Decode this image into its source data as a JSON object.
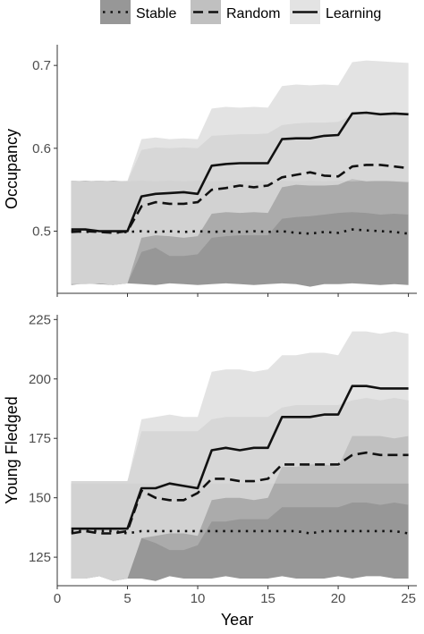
{
  "legend": {
    "items": [
      {
        "label": "Stable",
        "dash": "dotted",
        "fill": "#7d7d7d"
      },
      {
        "label": "Random",
        "dash": "dashed",
        "fill": "#b0b0b0"
      },
      {
        "label": "Learning",
        "dash": "solid",
        "fill": "#dcdcdc"
      }
    ]
  },
  "colors": {
    "line": "#111111",
    "axis": "#333333",
    "tick_text": "#4d4d4d",
    "stable_band": "#7d7d7d",
    "random_band": "#b0b0b0",
    "learning_band": "#dcdcdc",
    "band_opacity": "0.8"
  },
  "chart_data": [
    {
      "type": "line",
      "ylabel": "Occupancy",
      "xlabel": "",
      "xlim": [
        0,
        25.6
      ],
      "ylim": [
        0.425,
        0.725
      ],
      "yticks": [
        0.5,
        0.6,
        0.7
      ],
      "ytick_labels": [
        "0.5",
        "0.6",
        "0.7"
      ],
      "xticks": [
        0,
        5,
        10,
        15,
        20,
        25
      ],
      "x": [
        1,
        2,
        3,
        4,
        5,
        6,
        7,
        8,
        9,
        10,
        11,
        12,
        13,
        14,
        15,
        16,
        17,
        18,
        19,
        20,
        21,
        22,
        23,
        24,
        25
      ],
      "series": [
        {
          "name": "Stable",
          "values": [
            0.5,
            0.499,
            0.5,
            0.498,
            0.499,
            0.5,
            0.499,
            0.5,
            0.499,
            0.5,
            0.499,
            0.5,
            0.499,
            0.5,
            0.499,
            0.5,
            0.498,
            0.497,
            0.499,
            0.498,
            0.502,
            0.501,
            0.5,
            0.499,
            0.497
          ],
          "lower": [
            0.435,
            0.437,
            0.436,
            0.435,
            0.437,
            0.436,
            0.435,
            0.437,
            0.436,
            0.435,
            0.436,
            0.437,
            0.436,
            0.435,
            0.436,
            0.437,
            0.436,
            0.433,
            0.436,
            0.436,
            0.437,
            0.436,
            0.435,
            0.436,
            0.435
          ],
          "upper": [
            0.561,
            0.56,
            0.561,
            0.56,
            0.56,
            0.561,
            0.56,
            0.561,
            0.56,
            0.561,
            0.56,
            0.561,
            0.56,
            0.561,
            0.56,
            0.561,
            0.56,
            0.561,
            0.56,
            0.561,
            0.56,
            0.561,
            0.56,
            0.561,
            0.56
          ]
        },
        {
          "name": "Random",
          "values": [
            0.499,
            0.5,
            0.499,
            0.498,
            0.5,
            0.53,
            0.535,
            0.533,
            0.533,
            0.535,
            0.55,
            0.552,
            0.555,
            0.553,
            0.555,
            0.565,
            0.568,
            0.571,
            0.567,
            0.566,
            0.578,
            0.58,
            0.58,
            0.578,
            0.576
          ],
          "lower": [
            0.436,
            0.436,
            0.437,
            0.435,
            0.437,
            0.475,
            0.48,
            0.47,
            0.47,
            0.472,
            0.492,
            0.494,
            0.495,
            0.495,
            0.495,
            0.515,
            0.517,
            0.518,
            0.52,
            0.522,
            0.523,
            0.522,
            0.52,
            0.521,
            0.52
          ],
          "upper": [
            0.56,
            0.561,
            0.56,
            0.561,
            0.56,
            0.598,
            0.601,
            0.6,
            0.601,
            0.6,
            0.615,
            0.616,
            0.617,
            0.617,
            0.618,
            0.628,
            0.63,
            0.631,
            0.631,
            0.632,
            0.64,
            0.642,
            0.641,
            0.642,
            0.64
          ]
        },
        {
          "name": "Learning",
          "values": [
            0.502,
            0.502,
            0.5,
            0.5,
            0.5,
            0.542,
            0.545,
            0.546,
            0.547,
            0.545,
            0.579,
            0.581,
            0.582,
            0.582,
            0.582,
            0.611,
            0.612,
            0.612,
            0.615,
            0.616,
            0.642,
            0.643,
            0.641,
            0.642,
            0.641
          ],
          "lower": [
            0.436,
            0.436,
            0.437,
            0.435,
            0.437,
            0.492,
            0.495,
            0.494,
            0.492,
            0.494,
            0.521,
            0.523,
            0.522,
            0.523,
            0.522,
            0.553,
            0.556,
            0.555,
            0.555,
            0.556,
            0.563,
            0.56,
            0.561,
            0.56,
            0.559
          ],
          "upper": [
            0.561,
            0.56,
            0.561,
            0.56,
            0.561,
            0.611,
            0.613,
            0.611,
            0.612,
            0.611,
            0.648,
            0.65,
            0.649,
            0.65,
            0.649,
            0.675,
            0.677,
            0.676,
            0.677,
            0.676,
            0.704,
            0.706,
            0.705,
            0.704,
            0.703
          ]
        }
      ]
    },
    {
      "type": "line",
      "ylabel": "Young Fledged",
      "xlabel": "Year",
      "xlim": [
        0,
        25.6
      ],
      "ylim": [
        113,
        227
      ],
      "yticks": [
        125,
        150,
        175,
        200,
        225
      ],
      "ytick_labels": [
        "125",
        "150",
        "175",
        "200",
        "225"
      ],
      "xticks": [
        0,
        5,
        10,
        15,
        20,
        25
      ],
      "xtick_labels": [
        "0",
        "5",
        "10",
        "15",
        "20",
        "25"
      ],
      "x": [
        1,
        2,
        3,
        4,
        5,
        6,
        7,
        8,
        9,
        10,
        11,
        12,
        13,
        14,
        15,
        16,
        17,
        18,
        19,
        20,
        21,
        22,
        23,
        24,
        25
      ],
      "series": [
        {
          "name": "Stable",
          "values": [
            136,
            136,
            136,
            136,
            135,
            136,
            136,
            136,
            136,
            136,
            136,
            136,
            136,
            136,
            136,
            136,
            136,
            135,
            136,
            136,
            136,
            136,
            136,
            136,
            135
          ],
          "lower": [
            116,
            116,
            117,
            115,
            116,
            116,
            115,
            117,
            116,
            116,
            116,
            117,
            116,
            116,
            116,
            117,
            116,
            116,
            116,
            117,
            116,
            117,
            117,
            116,
            116
          ],
          "upper": [
            156,
            156,
            156,
            156,
            156,
            156,
            156,
            156,
            156,
            156,
            156,
            156,
            156,
            156,
            156,
            156,
            156,
            156,
            156,
            156,
            156,
            156,
            156,
            156,
            156
          ]
        },
        {
          "name": "Random",
          "values": [
            135,
            136,
            135,
            135,
            136,
            153,
            150,
            149,
            149,
            152,
            158,
            158,
            157,
            157,
            158,
            164,
            164,
            164,
            164,
            164,
            168,
            169,
            168,
            168,
            168
          ],
          "lower": [
            116,
            116,
            117,
            115,
            116,
            133,
            131,
            128,
            128,
            130,
            140,
            140,
            141,
            141,
            141,
            146,
            146,
            146,
            146,
            146,
            148,
            148,
            147,
            148,
            147
          ],
          "upper": [
            157,
            157,
            157,
            157,
            157,
            178,
            178,
            178,
            178,
            178,
            183,
            184,
            184,
            184,
            184,
            188,
            189,
            189,
            189,
            189,
            191,
            192,
            191,
            192,
            191
          ]
        },
        {
          "name": "Learning",
          "values": [
            137,
            137,
            137,
            137,
            137,
            154,
            154,
            156,
            155,
            154,
            170,
            171,
            170,
            171,
            171,
            184,
            184,
            184,
            185,
            185,
            197,
            197,
            196,
            196,
            196
          ],
          "lower": [
            116,
            116,
            117,
            115,
            116,
            133,
            134,
            135,
            135,
            134,
            149,
            150,
            150,
            149,
            150,
            163,
            163,
            164,
            164,
            163,
            176,
            176,
            176,
            175,
            176
          ],
          "upper": [
            157,
            157,
            157,
            157,
            157,
            183,
            184,
            185,
            184,
            184,
            203,
            204,
            204,
            203,
            204,
            210,
            210,
            211,
            211,
            210,
            220,
            220,
            219,
            220,
            219
          ]
        }
      ]
    }
  ]
}
